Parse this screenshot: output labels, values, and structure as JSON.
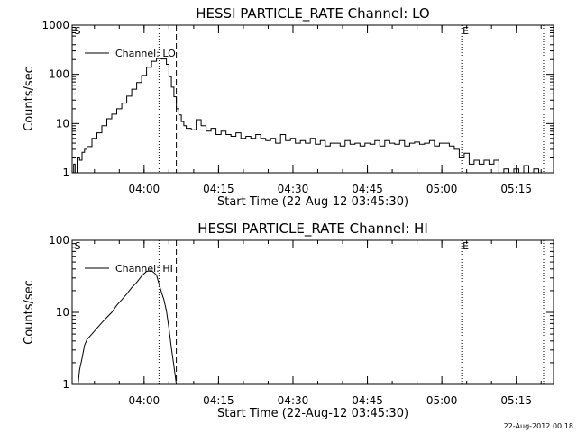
{
  "footer": {
    "timestamp": "22-Aug-2012 00:18"
  },
  "chart_data": [
    {
      "type": "line",
      "title": "HESSI PARTICLE_RATE Channel: LO",
      "xlabel": "Start Time (22-Aug-12 03:45:30)",
      "ylabel": "Counts/sec",
      "y_scale": "log",
      "ylim": [
        1,
        1000
      ],
      "xlim_minutes_after_start": [
        0,
        97
      ],
      "x_ticks": [
        {
          "label": "04:00",
          "t": 14.5
        },
        {
          "label": "04:15",
          "t": 29.5
        },
        {
          "label": "04:30",
          "t": 44.5
        },
        {
          "label": "04:45",
          "t": 59.5
        },
        {
          "label": "05:00",
          "t": 74.5
        },
        {
          "label": "05:15",
          "t": 89.5
        }
      ],
      "y_ticks": [
        {
          "label": "1",
          "v": 1
        },
        {
          "label": "10",
          "v": 10
        },
        {
          "label": "100",
          "v": 100
        },
        {
          "label": "1000",
          "v": 1000
        }
      ],
      "legend": {
        "label": "Channel: LO",
        "placement": "top-left"
      },
      "markers": [
        {
          "label": "S",
          "t": 0.3,
          "style": "none"
        },
        {
          "label": "",
          "t": 17.5,
          "style": "dotted"
        },
        {
          "label": "",
          "t": 21.0,
          "style": "dashed"
        },
        {
          "label": "E",
          "t": 78.5,
          "style": "dotted"
        },
        {
          "label": "",
          "t": 95.0,
          "style": "dotted"
        }
      ],
      "series": [
        {
          "x": [
            0,
            0.3,
            0.6,
            1.0,
            1.5,
            2.0,
            2.5,
            3,
            4,
            5,
            6,
            7,
            8,
            9,
            10,
            11,
            12,
            13,
            14,
            15,
            16,
            17,
            18,
            19,
            19.5,
            20,
            20.5,
            21,
            21.5,
            22,
            22.5,
            23,
            24,
            25,
            26,
            27,
            28,
            29,
            30,
            31,
            32,
            33,
            34,
            35,
            36,
            37,
            38,
            39,
            40,
            41,
            42,
            43,
            44,
            45,
            46,
            47,
            48,
            49,
            50,
            51,
            52,
            53,
            54,
            55,
            56,
            57,
            58,
            59,
            60,
            61,
            62,
            63,
            64,
            65,
            66,
            67,
            68,
            69,
            70,
            71,
            72,
            73,
            74,
            75,
            76,
            77,
            78,
            79,
            80,
            81,
            82,
            83,
            84,
            85,
            86,
            87,
            88,
            89,
            90,
            91,
            92,
            93,
            94,
            95
          ],
          "y": [
            1,
            1.5,
            1.0,
            2.0,
            1.8,
            2.6,
            3.0,
            3.4,
            5.0,
            6.5,
            9.0,
            12.5,
            15.5,
            20.0,
            26.0,
            36.0,
            50.0,
            68.0,
            95.0,
            140.0,
            185.0,
            210.0,
            205.0,
            160.0,
            90.0,
            55.0,
            35.0,
            20.0,
            15.0,
            11.0,
            9.0,
            8.0,
            7.5,
            12.0,
            9.0,
            7.0,
            8.0,
            6.0,
            7.0,
            6.0,
            5.5,
            6.5,
            5.0,
            5.5,
            5.0,
            6.0,
            5.0,
            4.5,
            5.0,
            4.0,
            6.0,
            4.5,
            5.0,
            4.0,
            4.5,
            4.0,
            5.0,
            3.8,
            4.5,
            3.5,
            4.0,
            4.0,
            3.5,
            4.5,
            3.8,
            4.0,
            3.5,
            4.0,
            3.8,
            4.5,
            3.5,
            4.5,
            4.0,
            3.8,
            4.5,
            3.5,
            4.0,
            4.2,
            3.8,
            4.0,
            4.5,
            3.5,
            4.0,
            4.0,
            3.5,
            3.0,
            2.0,
            2.5,
            1.5,
            1.8,
            1.5,
            1.8,
            1.5,
            1.8,
            1.0,
            1.2,
            1.0,
            1.2,
            1.0,
            1.4,
            1.0,
            1.2,
            1.0,
            1.0
          ]
        }
      ]
    },
    {
      "type": "line",
      "title": "HESSI PARTICLE_RATE Channel: HI",
      "xlabel": "Start Time (22-Aug-12 03:45:30)",
      "ylabel": "Counts/sec",
      "y_scale": "log",
      "ylim": [
        1,
        100
      ],
      "xlim_minutes_after_start": [
        0,
        97
      ],
      "x_ticks": [
        {
          "label": "04:00",
          "t": 14.5
        },
        {
          "label": "04:15",
          "t": 29.5
        },
        {
          "label": "04:30",
          "t": 44.5
        },
        {
          "label": "04:45",
          "t": 59.5
        },
        {
          "label": "05:00",
          "t": 74.5
        },
        {
          "label": "05:15",
          "t": 89.5
        }
      ],
      "y_ticks": [
        {
          "label": "1",
          "v": 1
        },
        {
          "label": "10",
          "v": 10
        },
        {
          "label": "100",
          "v": 100
        }
      ],
      "legend": {
        "label": "Channel: HI",
        "placement": "top-left"
      },
      "markers": [
        {
          "label": "S",
          "t": 0.3,
          "style": "none"
        },
        {
          "label": "",
          "t": 17.5,
          "style": "dotted"
        },
        {
          "label": "",
          "t": 21.0,
          "style": "dashed"
        },
        {
          "label": "E",
          "t": 78.5,
          "style": "dotted"
        },
        {
          "label": "",
          "t": 95.0,
          "style": "dotted"
        }
      ],
      "series": [
        {
          "x": [
            1.2,
            1.5,
            2,
            2.5,
            3,
            4,
            5,
            6,
            7,
            8,
            9,
            10,
            11,
            12,
            13,
            14,
            15,
            16,
            17,
            17.5,
            18,
            18.5,
            19,
            19.5,
            20,
            20.5,
            21
          ],
          "y": [
            1.0,
            1.6,
            2.3,
            3.5,
            4.2,
            5.0,
            6.0,
            7.2,
            8.5,
            10.0,
            12.5,
            15.0,
            18.0,
            22.0,
            26.0,
            32.0,
            37.0,
            38.0,
            33.0,
            25.0,
            19.0,
            15.0,
            10.5,
            6.0,
            3.2,
            1.8,
            1.0
          ]
        }
      ]
    }
  ]
}
